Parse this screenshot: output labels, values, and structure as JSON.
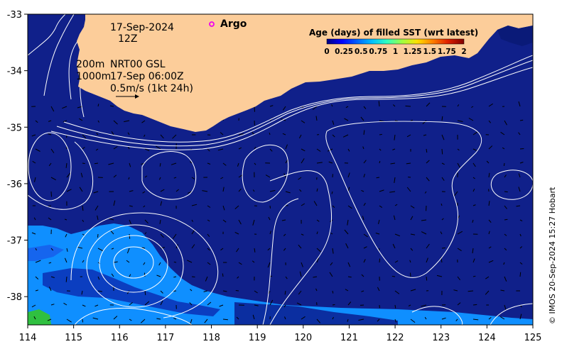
{
  "header": {
    "date": "17-Sep-2024",
    "time": "12Z"
  },
  "legend_text": {
    "depth_shallow": "200m",
    "depth_deep": "1000m",
    "product": "NRT00 GSL",
    "product_time": "17-Sep 06:00Z",
    "scale_text": "0.5m/s (1kt 24h)"
  },
  "argo": {
    "label": "Argo",
    "color": "#ee00ee"
  },
  "colorbar": {
    "title": "Age (days) of filled SST (wrt latest)",
    "ticks": [
      "0",
      "0.25",
      "0.5",
      "0.75",
      "1",
      "1.25",
      "1.5",
      "1.75",
      "2"
    ],
    "colors": [
      "#000080",
      "#0000ff",
      "#0080ff",
      "#00e0ff",
      "#40ff80",
      "#c0ff00",
      "#ffd000",
      "#ff6000",
      "#c00000",
      "#800000"
    ]
  },
  "axes": {
    "x_ticks": [
      "114",
      "115",
      "116",
      "117",
      "118",
      "119",
      "120",
      "121",
      "122",
      "123",
      "124",
      "125"
    ],
    "y_ticks": [
      "-33",
      "-34",
      "-35",
      "-36",
      "-37",
      "-38"
    ],
    "xlim": [
      114,
      125
    ],
    "ylim": [
      -38.5,
      -33
    ]
  },
  "credit": "© IMOS 20-Sep-2024 15:27 Hobart",
  "colors": {
    "ocean": "#10208a",
    "land": "#fccd9a",
    "filled_light": "#0f8fff",
    "filled_mid": "#0d5de0",
    "filled_green": "#30c040",
    "contour": "#ffffff"
  }
}
